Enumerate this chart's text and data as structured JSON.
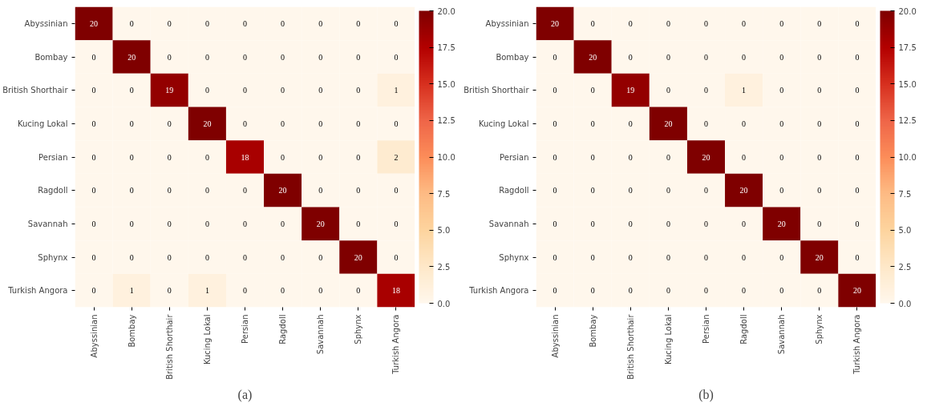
{
  "chart_data": [
    {
      "type": "heatmap",
      "categories": [
        "Abyssinian",
        "Bombay",
        "British Shorthair",
        "Kucing Lokal",
        "Persian",
        "Ragdoll",
        "Savannah",
        "Sphynx",
        "Turkish Angora"
      ],
      "y_categories": [
        "Abyssinian",
        "Bombay",
        "British Shorthair",
        "Kucing Lokal",
        "Persian",
        "Ragdoll",
        "Savannah",
        "Sphynx",
        "Turkish Angora"
      ],
      "cells": [
        [
          20,
          0,
          0,
          0,
          0,
          0,
          0,
          0,
          0
        ],
        [
          0,
          20,
          0,
          0,
          0,
          0,
          0,
          0,
          0
        ],
        [
          0,
          0,
          19,
          0,
          0,
          0,
          0,
          0,
          1
        ],
        [
          0,
          0,
          0,
          20,
          0,
          0,
          0,
          0,
          0
        ],
        [
          0,
          0,
          0,
          0,
          18,
          0,
          0,
          0,
          2
        ],
        [
          0,
          0,
          0,
          0,
          0,
          20,
          0,
          0,
          0
        ],
        [
          0,
          0,
          0,
          0,
          0,
          0,
          20,
          0,
          0
        ],
        [
          0,
          0,
          0,
          0,
          0,
          0,
          0,
          20,
          0
        ],
        [
          0,
          1,
          0,
          1,
          0,
          0,
          0,
          0,
          18
        ]
      ],
      "data_labels": true,
      "clim": [
        0,
        20
      ],
      "cticks": [
        {
          "value": 0,
          "label": "0.0"
        },
        {
          "value": 2.5,
          "label": "2.5"
        },
        {
          "value": 5,
          "label": "5.0"
        },
        {
          "value": 7.5,
          "label": "7.5"
        },
        {
          "value": 10,
          "label": "10.0"
        },
        {
          "value": 12.5,
          "label": "12.5"
        },
        {
          "value": 15,
          "label": "15.0"
        },
        {
          "value": 17.5,
          "label": "17.5"
        },
        {
          "value": 20,
          "label": "20.0"
        }
      ],
      "annotations": [
        "(a)"
      ]
    },
    {
      "type": "heatmap",
      "categories": [
        "Abyssinian",
        "Bombay",
        "British Shorthair",
        "Kucing Lokal",
        "Persian",
        "Ragdoll",
        "Savannah",
        "Sphynx",
        "Turkish Angora"
      ],
      "y_categories": [
        "Abyssinian",
        "Bombay",
        "British Shorthair",
        "Kucing Lokal",
        "Persian",
        "Ragdoll",
        "Savannah",
        "Sphynx",
        "Turkish Angora"
      ],
      "cells": [
        [
          20,
          0,
          0,
          0,
          0,
          0,
          0,
          0,
          0
        ],
        [
          0,
          20,
          0,
          0,
          0,
          0,
          0,
          0,
          0
        ],
        [
          0,
          0,
          19,
          0,
          0,
          1,
          0,
          0,
          0
        ],
        [
          0,
          0,
          0,
          20,
          0,
          0,
          0,
          0,
          0
        ],
        [
          0,
          0,
          0,
          0,
          20,
          0,
          0,
          0,
          0
        ],
        [
          0,
          0,
          0,
          0,
          0,
          20,
          0,
          0,
          0
        ],
        [
          0,
          0,
          0,
          0,
          0,
          0,
          20,
          0,
          0
        ],
        [
          0,
          0,
          0,
          0,
          0,
          0,
          0,
          20,
          0
        ],
        [
          0,
          0,
          0,
          0,
          0,
          0,
          0,
          0,
          20
        ]
      ],
      "data_labels": true,
      "clim": [
        0,
        20
      ],
      "cticks": [
        {
          "value": 0,
          "label": "0.0"
        },
        {
          "value": 2.5,
          "label": "2.5"
        },
        {
          "value": 5,
          "label": "5.0"
        },
        {
          "value": 7.5,
          "label": "7.5"
        },
        {
          "value": 10,
          "label": "10.0"
        },
        {
          "value": 12.5,
          "label": "12.5"
        },
        {
          "value": 15,
          "label": "15.0"
        },
        {
          "value": 17.5,
          "label": "17.5"
        },
        {
          "value": 20,
          "label": "20.0"
        }
      ],
      "annotations": [
        "(b)"
      ]
    }
  ]
}
